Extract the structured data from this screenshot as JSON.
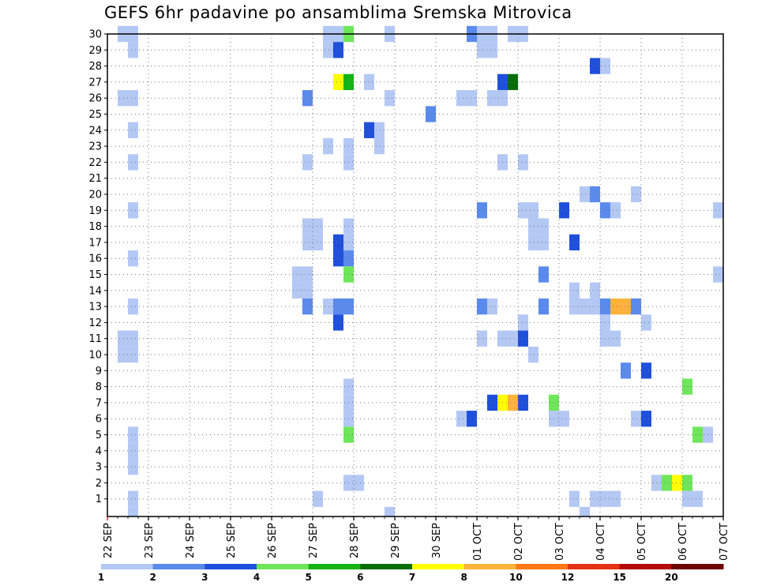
{
  "chart_data": {
    "type": "heatmap",
    "title": "GEFS 6hr padavine po ansamblima Sremska Mitrovica",
    "xlabel": "",
    "ylabel": "",
    "x_range": [
      "2019-09-22 00Z",
      "2019-10-07 00Z"
    ],
    "x_step_hours": 6,
    "x_tick_labels": [
      "22 SEP",
      "23 SEP",
      "24 SEP",
      "25 SEP",
      "26 SEP",
      "27 SEP",
      "28 SEP",
      "29 SEP",
      "30 SEP",
      "01 OCT",
      "02 OCT",
      "03 OCT",
      "04 OCT",
      "05 OCT",
      "06 OCT",
      "07 OCT"
    ],
    "y_range": [
      1,
      30
    ],
    "y_tick_labels": [
      "1",
      "2",
      "3",
      "4",
      "5",
      "6",
      "7",
      "8",
      "9",
      "10",
      "11",
      "12",
      "13",
      "14",
      "15",
      "16",
      "17",
      "18",
      "19",
      "20",
      "21",
      "22",
      "23",
      "24",
      "25",
      "26",
      "27",
      "28",
      "29",
      "30"
    ],
    "grid": true,
    "colorbar": {
      "position": "bottom",
      "labels": [
        "1",
        "2",
        "3",
        "4",
        "5",
        "6",
        "7",
        "8",
        "10",
        "12",
        "15",
        "20"
      ],
      "colors": [
        "#b4c8f4",
        "#5a8aec",
        "#1f50dc",
        "#6ee65a",
        "#14b414",
        "#086e08",
        "#ffff00",
        "#ffb23c",
        "#ff7814",
        "#e63214",
        "#b40a0a",
        "#6e0505"
      ]
    },
    "cell_columns": "6-hour period index counted from 22 SEP 00Z (0 = 22 SEP 00Z-06Z)",
    "cell_rows": "ensemble member number",
    "cells": [
      [
        30,
        1,
        0
      ],
      [
        30,
        2,
        0
      ],
      [
        29,
        2,
        0
      ],
      [
        26,
        2,
        0
      ],
      [
        24,
        2,
        0
      ],
      [
        22,
        2,
        0
      ],
      [
        19,
        2,
        0
      ],
      [
        16,
        2,
        0
      ],
      [
        13,
        2,
        0
      ],
      [
        11,
        1,
        0
      ],
      [
        11,
        2,
        0
      ],
      [
        10,
        1,
        0
      ],
      [
        10,
        2,
        0
      ],
      [
        5,
        2,
        0
      ],
      [
        4,
        2,
        0
      ],
      [
        3,
        2,
        0
      ],
      [
        1,
        2,
        0
      ],
      [
        26,
        19,
        1
      ],
      [
        22,
        19,
        0
      ],
      [
        18,
        19,
        0
      ],
      [
        18,
        20,
        0
      ],
      [
        17,
        19,
        0
      ],
      [
        17,
        20,
        0
      ],
      [
        15,
        18,
        0
      ],
      [
        15,
        19,
        0
      ],
      [
        14,
        18,
        0
      ],
      [
        14,
        19,
        0
      ],
      [
        13,
        19,
        1
      ],
      [
        1,
        20,
        0
      ],
      [
        30,
        21,
        0
      ],
      [
        30,
        22,
        0
      ],
      [
        30,
        23,
        3
      ],
      [
        29,
        21,
        0
      ],
      [
        29,
        22,
        2
      ],
      [
        27,
        22,
        6
      ],
      [
        27,
        23,
        4
      ],
      [
        26,
        1,
        0
      ],
      [
        23,
        21,
        0
      ],
      [
        23,
        23,
        0
      ],
      [
        22,
        23,
        0
      ],
      [
        18,
        23,
        0
      ],
      [
        17,
        22,
        2
      ],
      [
        17,
        23,
        0
      ],
      [
        16,
        22,
        2
      ],
      [
        16,
        23,
        1
      ],
      [
        15,
        23,
        3
      ],
      [
        13,
        21,
        0
      ],
      [
        13,
        22,
        1
      ],
      [
        13,
        23,
        1
      ],
      [
        12,
        22,
        2
      ],
      [
        8,
        23,
        0
      ],
      [
        7,
        23,
        0
      ],
      [
        6,
        23,
        0
      ],
      [
        5,
        23,
        3
      ],
      [
        2,
        23,
        0
      ],
      [
        2,
        24,
        0
      ],
      [
        27,
        25,
        0
      ],
      [
        24,
        25,
        2
      ],
      [
        24,
        26,
        0
      ],
      [
        23,
        26,
        0
      ],
      [
        26,
        27,
        0
      ],
      [
        30,
        27,
        0
      ],
      [
        25,
        31,
        1
      ],
      [
        30,
        35,
        1
      ],
      [
        30,
        36,
        0
      ],
      [
        30,
        37,
        0
      ],
      [
        30,
        39,
        0
      ],
      [
        30,
        40,
        0
      ],
      [
        29,
        36,
        0
      ],
      [
        29,
        37,
        0
      ],
      [
        27,
        38,
        2
      ],
      [
        27,
        39,
        5
      ],
      [
        26,
        34,
        0
      ],
      [
        26,
        35,
        0
      ],
      [
        26,
        37,
        0
      ],
      [
        26,
        38,
        0
      ],
      [
        22,
        38,
        0
      ],
      [
        22,
        40,
        0
      ],
      [
        19,
        36,
        1
      ],
      [
        19,
        40,
        0
      ],
      [
        19,
        41,
        0
      ],
      [
        18,
        41,
        0
      ],
      [
        18,
        42,
        0
      ],
      [
        17,
        41,
        0
      ],
      [
        17,
        42,
        0
      ],
      [
        15,
        42,
        1
      ],
      [
        13,
        36,
        1
      ],
      [
        13,
        37,
        0
      ],
      [
        13,
        42,
        1
      ],
      [
        12,
        40,
        0
      ],
      [
        11,
        36,
        0
      ],
      [
        11,
        38,
        0
      ],
      [
        11,
        39,
        0
      ],
      [
        11,
        40,
        2
      ],
      [
        10,
        41,
        0
      ],
      [
        7,
        37,
        2
      ],
      [
        7,
        38,
        6
      ],
      [
        7,
        39,
        7
      ],
      [
        7,
        40,
        2
      ],
      [
        6,
        34,
        0
      ],
      [
        6,
        35,
        2
      ],
      [
        19,
        44,
        2
      ],
      [
        17,
        45,
        2
      ],
      [
        14,
        45,
        0
      ],
      [
        13,
        45,
        0
      ],
      [
        13,
        46,
        0
      ],
      [
        7,
        43,
        3
      ],
      [
        6,
        43,
        0
      ],
      [
        6,
        44,
        0
      ],
      [
        1,
        45,
        0
      ],
      [
        28,
        47,
        2
      ],
      [
        28,
        48,
        0
      ],
      [
        20,
        46,
        0
      ],
      [
        20,
        47,
        1
      ],
      [
        19,
        48,
        1
      ],
      [
        19,
        49,
        0
      ],
      [
        14,
        47,
        0
      ],
      [
        13,
        47,
        0
      ],
      [
        13,
        48,
        1
      ],
      [
        13,
        49,
        7
      ],
      [
        13,
        50,
        7
      ],
      [
        13,
        51,
        1
      ],
      [
        12,
        48,
        0
      ],
      [
        12,
        52,
        0
      ],
      [
        11,
        48,
        0
      ],
      [
        11,
        49,
        0
      ],
      [
        20,
        51,
        0
      ],
      [
        9,
        50,
        1
      ],
      [
        9,
        52,
        2
      ],
      [
        6,
        51,
        0
      ],
      [
        6,
        52,
        2
      ],
      [
        1,
        47,
        0
      ],
      [
        1,
        48,
        0
      ],
      [
        1,
        49,
        0
      ],
      [
        2,
        53,
        0
      ],
      [
        2,
        54,
        3
      ],
      [
        2,
        55,
        6
      ],
      [
        2,
        56,
        3
      ],
      [
        19,
        59,
        0
      ],
      [
        15,
        59,
        0
      ],
      [
        8,
        56,
        3
      ],
      [
        5,
        57,
        3
      ],
      [
        5,
        58,
        0
      ],
      [
        1,
        56,
        0
      ],
      [
        1,
        57,
        0
      ],
      [
        0,
        2,
        0
      ],
      [
        0,
        27,
        0
      ],
      [
        0,
        46,
        0
      ]
    ]
  }
}
